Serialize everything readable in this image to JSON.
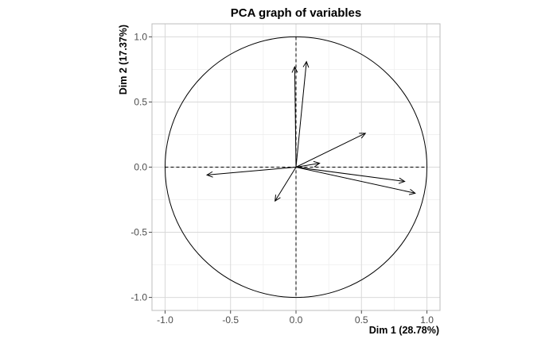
{
  "chart_data": {
    "type": "scatter",
    "subtype": "pca-variable-correlation-circle",
    "title": "PCA graph of variables",
    "xlabel": "Dim 1 (28.78%)",
    "ylabel": "Dim 2 (17.37%)",
    "xlim": [
      -1.1,
      1.1
    ],
    "ylim": [
      -1.1,
      1.1
    ],
    "xticks": [
      -1.0,
      -0.5,
      0.0,
      0.5,
      1.0
    ],
    "xtick_labels": [
      "-1.0",
      "-0.5",
      "0.0",
      "0.5",
      "1.0"
    ],
    "yticks": [
      -1.0,
      -0.5,
      0.0,
      0.5,
      1.0
    ],
    "ytick_labels": [
      "-1.0",
      "-0.5",
      "0.0",
      "0.5",
      "1.0"
    ],
    "grid": true,
    "unit_circle": true,
    "vectors": [
      {
        "x": 0.08,
        "y": 0.81
      },
      {
        "x": -0.01,
        "y": 0.77
      },
      {
        "x": 0.53,
        "y": 0.26
      },
      {
        "x": 0.18,
        "y": 0.03
      },
      {
        "x": 0.83,
        "y": -0.11
      },
      {
        "x": 0.91,
        "y": -0.2
      },
      {
        "x": -0.68,
        "y": -0.06
      },
      {
        "x": -0.16,
        "y": -0.26
      }
    ]
  }
}
